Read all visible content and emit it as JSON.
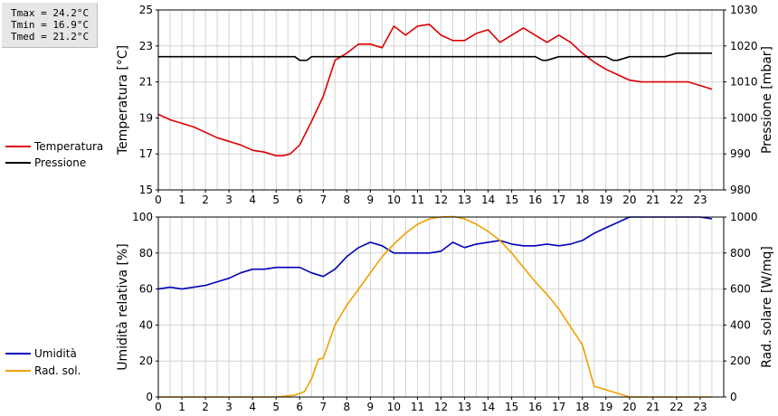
{
  "stats": {
    "tmax": "Tmax = 24.2°C",
    "tmin": "Tmin = 16.9°C",
    "tmed": "Tmed = 21.2°C"
  },
  "colors": {
    "temperature": "#dd0000",
    "pressure": "#000000",
    "humidity": "#0000bb",
    "radiation": "#f0a000",
    "grid": "#d4d4d4"
  },
  "chart_data": [
    {
      "type": "line",
      "legend": [
        "Temperatura",
        "Pressione"
      ],
      "xlabel": "",
      "ylabel_left": "Temperatura [°C]",
      "ylabel_right": "Pressione [mbar]",
      "xlim": [
        0,
        24
      ],
      "ylim_left": [
        15,
        25
      ],
      "ylim_right": [
        980,
        1030
      ],
      "x_ticks": [
        "0",
        "1",
        "2",
        "3",
        "4",
        "5",
        "6",
        "7",
        "8",
        "9",
        "10",
        "11",
        "12",
        "13",
        "14",
        "15",
        "16",
        "17",
        "18",
        "19",
        "20",
        "21",
        "22",
        "23"
      ],
      "y_ticks_left": [
        "15",
        "17",
        "19",
        "21",
        "23",
        "25"
      ],
      "y_ticks_right": [
        "980",
        "990",
        "1000",
        "1010",
        "1020",
        "1030"
      ],
      "grid": true,
      "series": [
        {
          "name": "Temperatura",
          "axis": "left",
          "x": [
            0,
            0.5,
            1,
            1.5,
            2,
            2.5,
            3,
            3.5,
            4,
            4.5,
            5,
            5.3,
            5.6,
            6,
            6.5,
            7,
            7.5,
            8,
            8.5,
            9,
            9.5,
            10,
            10.5,
            11,
            11.5,
            12,
            12.5,
            13,
            13.5,
            14,
            14.5,
            15,
            15.5,
            16,
            16.5,
            17,
            17.5,
            18,
            18.5,
            19,
            19.5,
            20,
            20.5,
            21,
            21.5,
            22,
            22.5,
            23,
            23.5
          ],
          "values": [
            19.2,
            18.9,
            18.7,
            18.5,
            18.2,
            17.9,
            17.7,
            17.5,
            17.2,
            17.1,
            16.9,
            16.9,
            17.0,
            17.5,
            18.8,
            20.2,
            22.2,
            22.6,
            23.1,
            23.1,
            22.9,
            24.1,
            23.6,
            24.1,
            24.2,
            23.6,
            23.3,
            23.3,
            23.7,
            23.9,
            23.2,
            23.6,
            24.0,
            23.6,
            23.2,
            23.6,
            23.2,
            22.6,
            22.1,
            21.7,
            21.4,
            21.1,
            21.0,
            21.0,
            21.0,
            21.0,
            21.0,
            20.8,
            20.6
          ]
        },
        {
          "name": "Pressione",
          "axis": "right",
          "x": [
            0,
            0.5,
            1,
            1.5,
            2,
            2.5,
            3,
            3.5,
            4,
            4.5,
            5,
            5.5,
            5.8,
            6,
            6.3,
            6.5,
            7,
            7.5,
            8,
            8.5,
            9,
            9.5,
            10,
            10.5,
            11,
            11.5,
            12,
            12.5,
            13,
            13.5,
            14,
            14.5,
            15,
            15.5,
            16,
            16.3,
            16.5,
            17,
            17.5,
            18,
            18.5,
            19,
            19.3,
            19.5,
            20,
            20.5,
            21,
            21.5,
            22,
            22.5,
            23,
            23.5
          ],
          "values": [
            1017,
            1017,
            1017,
            1017,
            1017,
            1017,
            1017,
            1017,
            1017,
            1017,
            1017,
            1017,
            1017,
            1016,
            1016,
            1017,
            1017,
            1017,
            1017,
            1017,
            1017,
            1017,
            1017,
            1017,
            1017,
            1017,
            1017,
            1017,
            1017,
            1017,
            1017,
            1017,
            1017,
            1017,
            1017,
            1016,
            1016,
            1017,
            1017,
            1017,
            1017,
            1017,
            1016,
            1016,
            1017,
            1017,
            1017,
            1017,
            1018,
            1018,
            1018,
            1018
          ]
        }
      ]
    },
    {
      "type": "line",
      "legend": [
        "Umidità",
        "Rad. sol."
      ],
      "xlabel": "",
      "ylabel_left": "Umidità relativa [%]",
      "ylabel_right": "Rad. solare [W/mq]",
      "xlim": [
        0,
        24
      ],
      "ylim_left": [
        0,
        100
      ],
      "ylim_right": [
        0,
        1000
      ],
      "x_ticks": [
        "0",
        "1",
        "2",
        "3",
        "4",
        "5",
        "6",
        "7",
        "8",
        "9",
        "10",
        "11",
        "12",
        "13",
        "14",
        "15",
        "16",
        "17",
        "18",
        "19",
        "20",
        "21",
        "22",
        "23"
      ],
      "y_ticks_left": [
        "0",
        "20",
        "40",
        "60",
        "80",
        "100"
      ],
      "y_ticks_right": [
        "0",
        "200",
        "400",
        "600",
        "800",
        "1000"
      ],
      "grid": true,
      "series": [
        {
          "name": "Umidità",
          "axis": "left",
          "x": [
            0,
            0.5,
            1,
            1.5,
            2,
            2.5,
            3,
            3.5,
            4,
            4.5,
            5,
            5.5,
            6,
            6.5,
            7,
            7.5,
            8,
            8.5,
            9,
            9.5,
            10,
            10.5,
            11,
            11.5,
            12,
            12.5,
            13,
            13.5,
            14,
            14.5,
            15,
            15.5,
            16,
            16.5,
            17,
            17.5,
            18,
            18.5,
            19,
            19.5,
            20,
            20.5,
            21,
            21.5,
            22,
            22.5,
            23,
            23.5
          ],
          "values": [
            60,
            61,
            60,
            61,
            62,
            64,
            66,
            69,
            71,
            71,
            72,
            72,
            72,
            69,
            67,
            71,
            78,
            83,
            86,
            84,
            80,
            80,
            80,
            80,
            81,
            86,
            83,
            85,
            86,
            87,
            85,
            84,
            84,
            85,
            84,
            85,
            87,
            91,
            94,
            97,
            100,
            100,
            100,
            100,
            100,
            100,
            100,
            99
          ]
        },
        {
          "name": "Rad. sol.",
          "axis": "right",
          "x": [
            0,
            1,
            2,
            3,
            4,
            5,
            5.8,
            6.2,
            6.5,
            6.8,
            7,
            7.5,
            8,
            8.5,
            9,
            9.5,
            10,
            10.5,
            11,
            11.5,
            12,
            12.5,
            13,
            13.5,
            14,
            14.5,
            15,
            15.5,
            16,
            16.5,
            17,
            17.5,
            18,
            18.5,
            19,
            19.5,
            20,
            21,
            22,
            23,
            23.5
          ],
          "values": [
            0,
            0,
            0,
            0,
            0,
            0,
            10,
            30,
            100,
            210,
            215,
            400,
            510,
            600,
            690,
            780,
            850,
            910,
            960,
            990,
            1000,
            1003,
            990,
            960,
            920,
            870,
            800,
            720,
            640,
            570,
            490,
            390,
            290,
            60,
            40,
            20,
            0,
            0,
            0,
            0,
            0
          ]
        }
      ]
    }
  ]
}
